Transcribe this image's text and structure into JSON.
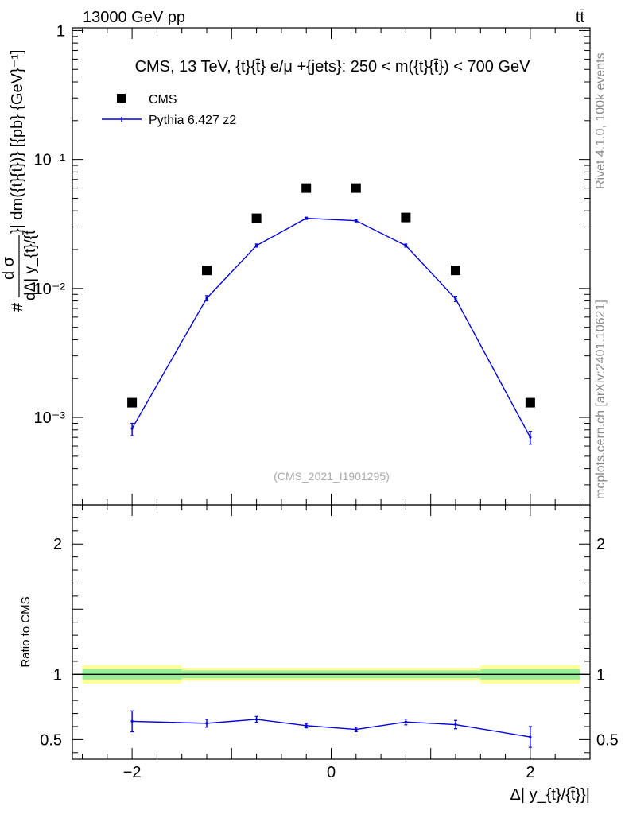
{
  "header": {
    "energy_label": "13000 GeV pp",
    "process_label": "tt̄"
  },
  "side_labels": {
    "rivet": "Rivet 4.1.0,  100k events",
    "source": "mcplots.cern.ch [arXiv:2401.10621]"
  },
  "chart_data": [
    {
      "type": "scatter",
      "panel": "main",
      "title": "CMS, 13 TeV, {t}{t̄} e/μ +{jets}: 250 < m({t}{t̄}) < 700 GeV",
      "ylabel_prefix": "#",
      "ylabel_num": "d σ",
      "ylabel_den": "dΔ| y_{t}/{t̄",
      "ylabel_tail": "}| dm({t}{t̄})} [{pb} {GeV}⁻¹]",
      "xlabel": "Δ| y_{t}/{t̄}}|",
      "yscale": "log",
      "ylim": [
        0.00021,
        1.05
      ],
      "xlim": [
        -2.6,
        2.6
      ],
      "x_ticks": [
        -2,
        0,
        2
      ],
      "y_ticks": [
        {
          "value": 1,
          "label": "1"
        },
        {
          "value": 0.1,
          "label": "10⁻¹"
        },
        {
          "value": 0.01,
          "label": "10⁻²"
        },
        {
          "value": 0.001,
          "label": "10⁻³"
        }
      ],
      "watermark": "(CMS_2021_I1901295)",
      "legend": [
        {
          "name": "CMS",
          "style": "square-marker"
        },
        {
          "name": "Pythia 6.427 z2",
          "style": "line"
        }
      ],
      "series": [
        {
          "name": "CMS",
          "color": "#000000",
          "x": [
            -2.0,
            -1.25,
            -0.75,
            -0.25,
            0.25,
            0.75,
            1.25,
            2.0
          ],
          "values": [
            0.0013,
            0.0138,
            0.035,
            0.06,
            0.06,
            0.0355,
            0.0138,
            0.0013
          ]
        },
        {
          "name": "Pythia 6.427 z2",
          "color": "#0000dd",
          "x": [
            -2.0,
            -1.25,
            -0.75,
            -0.25,
            0.25,
            0.75,
            1.25,
            2.0
          ],
          "values": [
            0.00082,
            0.0084,
            0.0215,
            0.035,
            0.0335,
            0.0215,
            0.0083,
            0.0007
          ],
          "err_low": [
            0.00072,
            0.008,
            0.0209,
            0.0343,
            0.0328,
            0.0209,
            0.0079,
            0.00062
          ],
          "err_high": [
            0.0009,
            0.0088,
            0.0221,
            0.0357,
            0.0342,
            0.0221,
            0.0087,
            0.00078
          ]
        }
      ]
    },
    {
      "type": "line",
      "panel": "ratio",
      "ylabel": "Ratio to CMS",
      "xlabel": "Δ| y_{t}/{t̄}}|",
      "ylim": [
        0.35,
        2.3
      ],
      "xlim": [
        -2.6,
        2.6
      ],
      "x_ticks": [
        -2,
        0,
        2
      ],
      "y_ticks": [
        0.5,
        1,
        2
      ],
      "bands": [
        {
          "x_from": -2.5,
          "x_to": -1.5,
          "green": [
            0.96,
            1.04
          ],
          "yellow": [
            0.93,
            1.07
          ]
        },
        {
          "x_from": -1.5,
          "x_to": 1.5,
          "green": [
            0.97,
            1.03
          ],
          "yellow": [
            0.95,
            1.05
          ]
        },
        {
          "x_from": 1.5,
          "x_to": 2.5,
          "green": [
            0.96,
            1.04
          ],
          "yellow": [
            0.93,
            1.07
          ]
        }
      ],
      "series": [
        {
          "name": "Pythia 6.427 z2",
          "color": "#0000dd",
          "x": [
            -2.0,
            -1.25,
            -0.75,
            -0.25,
            0.25,
            0.75,
            1.25,
            2.0
          ],
          "values": [
            0.64,
            0.625,
            0.655,
            0.607,
            0.578,
            0.635,
            0.615,
            0.52
          ],
          "err_low": [
            0.56,
            0.595,
            0.633,
            0.59,
            0.561,
            0.613,
            0.583,
            0.44
          ],
          "err_high": [
            0.72,
            0.655,
            0.677,
            0.624,
            0.595,
            0.657,
            0.647,
            0.6
          ]
        }
      ]
    }
  ]
}
